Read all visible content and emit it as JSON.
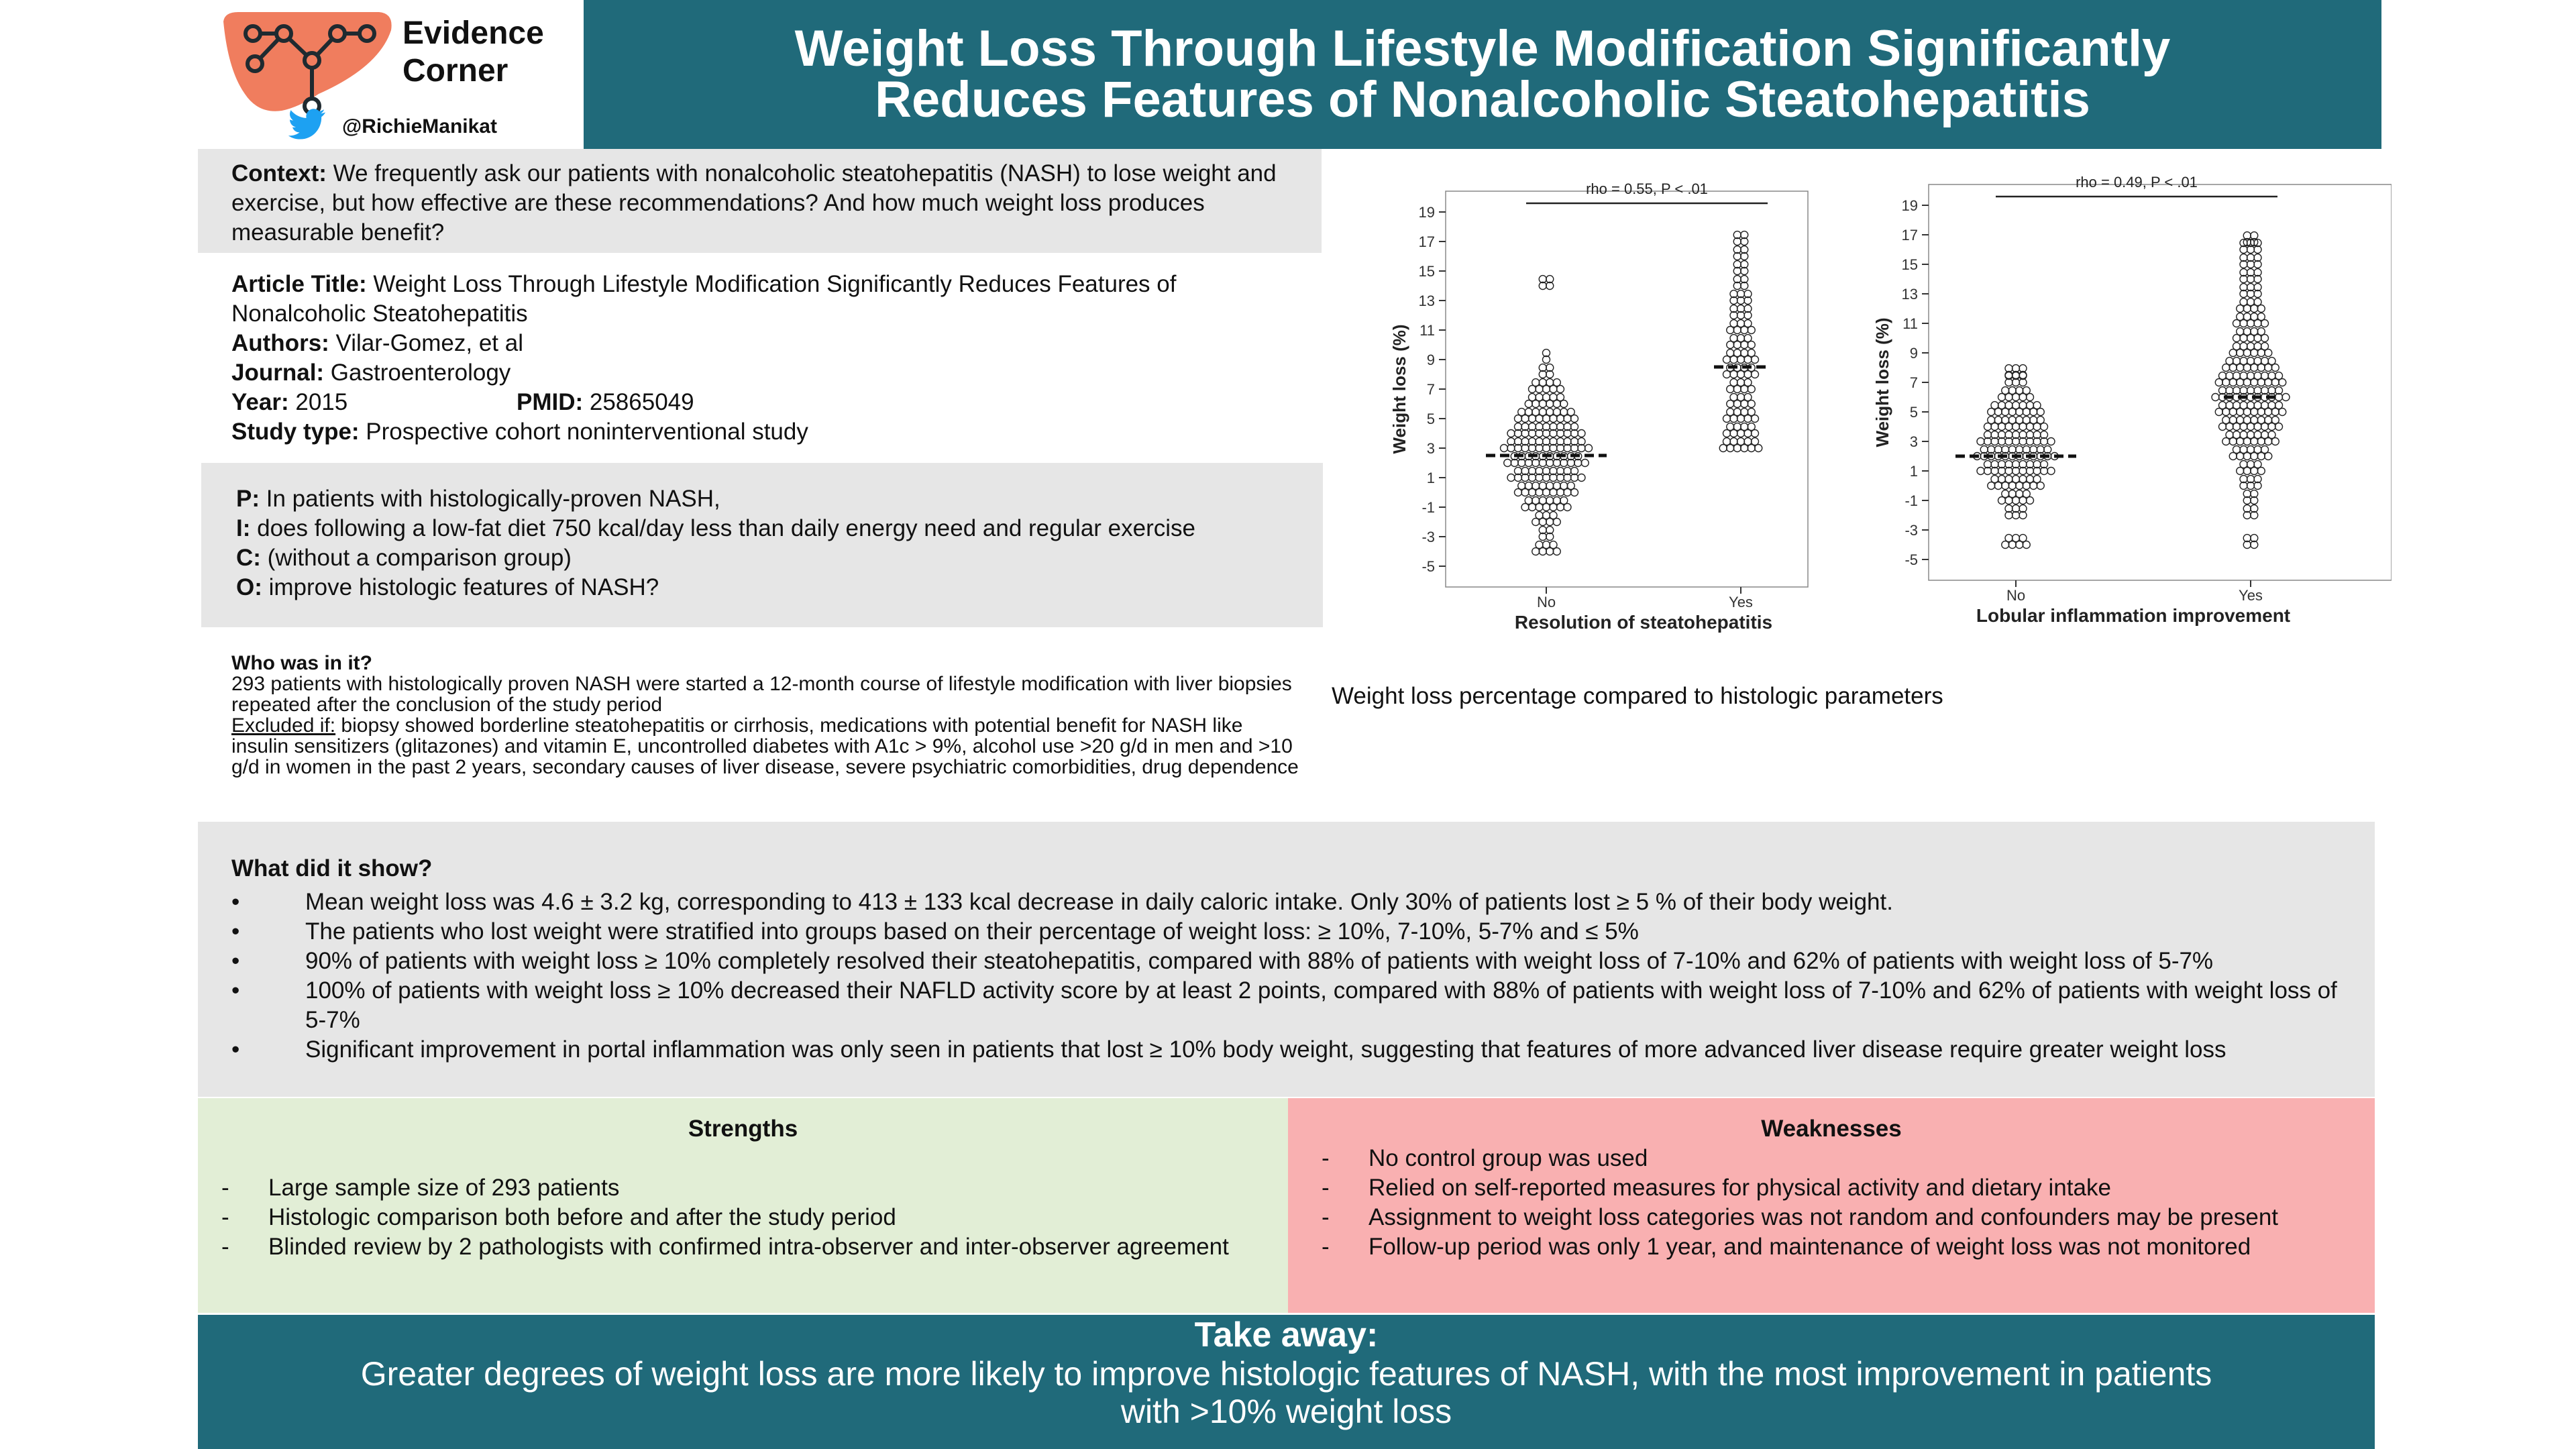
{
  "header": {
    "brand": "Evidence\nCorner",
    "handle": "@RichieManikat",
    "title": "Weight Loss Through Lifestyle Modification Significantly\nReduces Features of Nonalcoholic Steatohepatitis"
  },
  "context": {
    "label": "Context:",
    "text": " We frequently ask our patients with nonalcoholic steatohepatitis (NASH) to lose weight and exercise, but how effective are these recommendations?  And how much weight loss produces measurable benefit?"
  },
  "article": {
    "title_label": "Article Title:",
    "title": " Weight Loss Through Lifestyle Modification Significantly Reduces Features of Nonalcoholic Steatohepatitis",
    "authors_label": "Authors:",
    "authors": " Vilar-Gomez, et al",
    "journal_label": "Journal:",
    "journal": "  Gastroenterology",
    "year_label": "Year:",
    "year": " 2015",
    "pmid_label": "PMID:",
    "pmid": "  25865049",
    "study_label": "Study type:",
    "study": " Prospective cohort noninterventional study"
  },
  "pico": {
    "p_label": "P:",
    "p": " In patients with histologically-proven NASH,",
    "i_label": "I:",
    "i": "  does following a low-fat diet 750 kcal/day less than daily energy need and regular exercise",
    "c_label": "C:",
    "c": " (without a comparison group)",
    "o_label": "O:",
    "o": " improve histologic features of NASH?"
  },
  "who": {
    "heading": "Who was in it?",
    "line1": "293 patients with histologically proven NASH were started a 12-month course of lifestyle modification with liver biopsies repeated after the conclusion of the study period",
    "excluded_label": "Excluded if:",
    "excluded": " biopsy showed borderline steatohepatitis or cirrhosis, medications with potential benefit for NASH like insulin sensitizers (glitazones) and vitamin E, uncontrolled diabetes with A1c > 9%, alcohol use >20 g/d in men and >10 g/d in women in the past 2 years, secondary causes of liver disease, severe psychiatric comorbidities, drug dependence"
  },
  "caption": "Weight loss percentage compared to histologic parameters",
  "chart_data": [
    {
      "type": "scatter",
      "xlabel": "Resolution of steatohepatitis",
      "ylabel": "Weight loss (%)",
      "categories": [
        "No",
        "Yes"
      ],
      "yticks": [
        19,
        17,
        15,
        13,
        11,
        9,
        7,
        5,
        3,
        1,
        -1,
        -3,
        -5
      ],
      "ylim": [
        -5.5,
        19.5
      ],
      "annotation": "rho = 0.55, P < .01",
      "means": [
        2.5,
        8.5
      ],
      "range_no": [
        -4,
        14
      ],
      "range_yes": [
        3,
        17
      ]
    },
    {
      "type": "scatter",
      "xlabel": "Lobular inflammation improvement",
      "ylabel": "Weight loss (%)",
      "categories": [
        "No",
        "Yes"
      ],
      "yticks": [
        19,
        17,
        15,
        13,
        11,
        9,
        7,
        5,
        3,
        1,
        -1,
        -3,
        -5
      ],
      "ylim": [
        -5.5,
        19.5
      ],
      "annotation": "rho = 0.49, P < .01",
      "means": [
        2,
        6
      ],
      "range_no": [
        -4,
        7.5
      ],
      "range_yes": [
        -4,
        16.5
      ]
    }
  ],
  "results": {
    "heading": "What did it show?",
    "bullet": "•",
    "items": [
      "Mean weight loss was 4.6 ± 3.2 kg, corresponding to 413 ± 133 kcal decrease in daily caloric intake.  Only 30% of patients lost ≥ 5 % of their body weight.",
      "The patients who lost weight were stratified into groups based on their percentage of weight loss: ≥ 10%, 7-10%, 5-7% and ≤ 5%",
      "90% of patients with weight loss  ≥ 10% completely resolved their steatohepatitis, compared with 88% of patients with weight loss of 7-10% and 62% of patients with weight loss of 5-7%",
      "100% of patients with weight loss  ≥ 10%  decreased their NAFLD activity score by at least 2 points, compared with 88% of patients with weight loss of 7-10% and 62% of patients with weight loss of 5-7%",
      "Significant improvement in portal inflammation was only seen in patients that lost ≥ 10% body weight, suggesting that features of more advanced liver disease require greater weight loss"
    ]
  },
  "strengths": {
    "heading": "Strengths",
    "dash": "-",
    "items": [
      "Large sample size of 293 patients",
      "Histologic comparison both before and after the study period",
      "Blinded review by 2 pathologists with confirmed intra-observer and inter-observer agreement"
    ]
  },
  "weaknesses": {
    "heading": "Weaknesses",
    "dash": "-",
    "items": [
      "No control group was used",
      "Relied on self-reported measures for physical activity and dietary intake",
      "Assignment to weight loss categories was not random and confounders may be present",
      "Follow-up period was only 1 year, and maintenance of weight loss was not monitored"
    ]
  },
  "takeaway": {
    "heading": "Take away:",
    "text": "Greater degrees of weight loss are more likely to improve histologic features of NASH, with the most improvement in patients with >10% weight loss"
  },
  "colors": {
    "teal": "#206a7a",
    "grey": "#e6e6e6",
    "green": "#e2eed6",
    "pink": "#f9b0b1",
    "logo_orange": "#f07d5e",
    "twitter_blue": "#1da1f2"
  },
  "icons": {
    "logo": "liver-network-icon",
    "twitter": "twitter-bird-icon"
  }
}
